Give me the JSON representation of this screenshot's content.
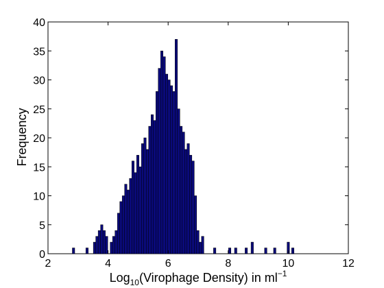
{
  "chart_data": {
    "type": "bar",
    "title": "",
    "xlabel": {
      "prefix": "Log",
      "prefix_sub": "10",
      "main": "(Virophage Density) in ml",
      "unit_sup": "−1"
    },
    "ylabel": "Frequency",
    "xlim": [
      2,
      12
    ],
    "ylim": [
      0,
      40
    ],
    "xticks": [
      "2",
      "4",
      "6",
      "8",
      "10",
      "12"
    ],
    "yticks": [
      "0",
      "5",
      "10",
      "15",
      "20",
      "25",
      "30",
      "35",
      "40"
    ],
    "grid": false,
    "bin_width": 0.08,
    "bar_color": "#0a0a7a",
    "bar_edge_color": "#000000",
    "bins": [
      {
        "x": 2.85,
        "y": 1
      },
      {
        "x": 3.3,
        "y": 1
      },
      {
        "x": 3.55,
        "y": 2
      },
      {
        "x": 3.63,
        "y": 3
      },
      {
        "x": 3.71,
        "y": 4
      },
      {
        "x": 3.79,
        "y": 5
      },
      {
        "x": 3.87,
        "y": 4
      },
      {
        "x": 3.95,
        "y": 3
      },
      {
        "x": 4.11,
        "y": 2
      },
      {
        "x": 4.19,
        "y": 3
      },
      {
        "x": 4.27,
        "y": 4
      },
      {
        "x": 4.35,
        "y": 7
      },
      {
        "x": 4.43,
        "y": 9
      },
      {
        "x": 4.51,
        "y": 10
      },
      {
        "x": 4.59,
        "y": 12
      },
      {
        "x": 4.67,
        "y": 11
      },
      {
        "x": 4.75,
        "y": 13
      },
      {
        "x": 4.83,
        "y": 16
      },
      {
        "x": 4.91,
        "y": 14
      },
      {
        "x": 4.99,
        "y": 17
      },
      {
        "x": 5.07,
        "y": 15
      },
      {
        "x": 5.15,
        "y": 19
      },
      {
        "x": 5.23,
        "y": 20
      },
      {
        "x": 5.31,
        "y": 18
      },
      {
        "x": 5.39,
        "y": 22
      },
      {
        "x": 5.47,
        "y": 24
      },
      {
        "x": 5.55,
        "y": 23
      },
      {
        "x": 5.63,
        "y": 28
      },
      {
        "x": 5.71,
        "y": 32
      },
      {
        "x": 5.79,
        "y": 35
      },
      {
        "x": 5.87,
        "y": 34
      },
      {
        "x": 5.95,
        "y": 31
      },
      {
        "x": 6.03,
        "y": 30
      },
      {
        "x": 6.11,
        "y": 29
      },
      {
        "x": 6.19,
        "y": 28
      },
      {
        "x": 6.27,
        "y": 37
      },
      {
        "x": 6.35,
        "y": 25
      },
      {
        "x": 6.43,
        "y": 22
      },
      {
        "x": 6.51,
        "y": 21
      },
      {
        "x": 6.59,
        "y": 18
      },
      {
        "x": 6.67,
        "y": 19
      },
      {
        "x": 6.75,
        "y": 17
      },
      {
        "x": 6.83,
        "y": 16
      },
      {
        "x": 6.91,
        "y": 10
      },
      {
        "x": 6.99,
        "y": 4
      },
      {
        "x": 7.07,
        "y": 2
      },
      {
        "x": 7.15,
        "y": 3
      },
      {
        "x": 7.55,
        "y": 1
      },
      {
        "x": 8.05,
        "y": 1
      },
      {
        "x": 8.25,
        "y": 1
      },
      {
        "x": 8.6,
        "y": 1
      },
      {
        "x": 8.8,
        "y": 2
      },
      {
        "x": 9.25,
        "y": 1
      },
      {
        "x": 9.55,
        "y": 1
      },
      {
        "x": 10.0,
        "y": 2
      },
      {
        "x": 10.15,
        "y": 1
      }
    ]
  }
}
